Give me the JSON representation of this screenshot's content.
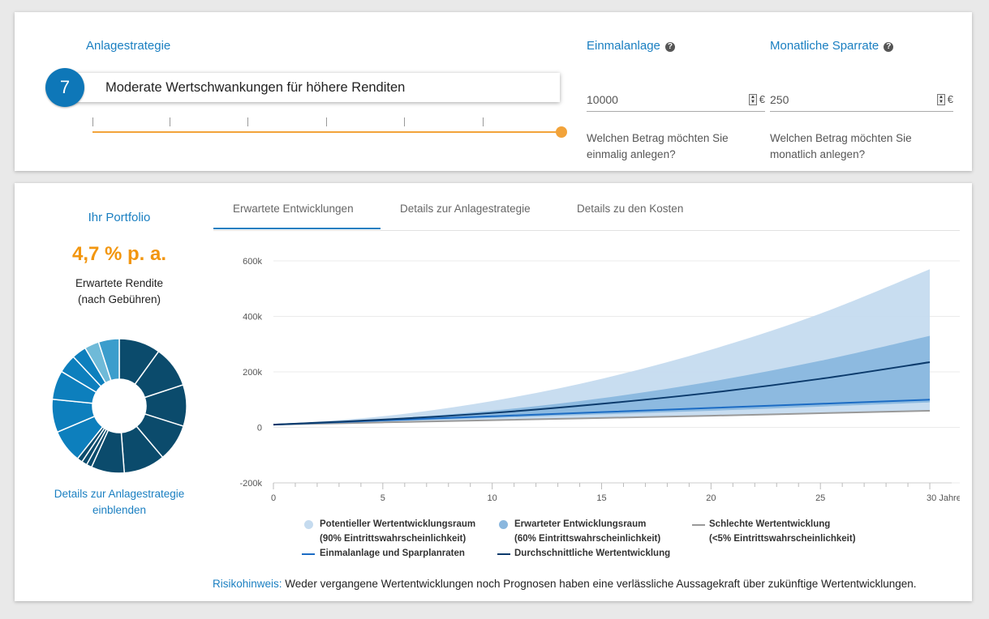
{
  "strategy": {
    "heading": "Anlagestrategie",
    "level": "7",
    "description": "Moderate Wertschwankungen für höhere Renditen",
    "slider_value": 7,
    "slider_max": 7,
    "accent_color": "#f2a33a"
  },
  "one_time": {
    "heading": "Einmalanlage",
    "value": "10000",
    "unit": "€",
    "help": "Welchen Betrag möchten Sie einmalig anlegen?"
  },
  "monthly": {
    "heading": "Monatliche Sparrate",
    "value": "250",
    "unit": "€",
    "help": "Welchen Betrag möchten Sie monatlich anlegen?"
  },
  "portfolio": {
    "title": "Ihr Portfolio",
    "return_value": "4,7 % p. a.",
    "return_label_1": "Erwartete Rendite",
    "return_label_2": "(nach Gebühren)",
    "details_link_1": "Details zur Anlagestrategie",
    "details_link_2": "einblenden",
    "donut_slices": [
      {
        "value": 10,
        "color": "#0b4b6c"
      },
      {
        "value": 10,
        "color": "#0b4b6c"
      },
      {
        "value": 10,
        "color": "#0b4b6c"
      },
      {
        "value": 9,
        "color": "#0b4b6c"
      },
      {
        "value": 10,
        "color": "#0b4b6c"
      },
      {
        "value": 8,
        "color": "#0b4b6c"
      },
      {
        "value": 1.3,
        "color": "#0b4b6c"
      },
      {
        "value": 1.3,
        "color": "#0b4b6c"
      },
      {
        "value": 1.3,
        "color": "#0b4b6c"
      },
      {
        "value": 8,
        "color": "#0d7fbd"
      },
      {
        "value": 8,
        "color": "#0d7fbd"
      },
      {
        "value": 7,
        "color": "#0d7fbd"
      },
      {
        "value": 4.5,
        "color": "#0d7fbd"
      },
      {
        "value": 3.5,
        "color": "#0d7fbd"
      },
      {
        "value": 3.5,
        "color": "#6fbad8"
      },
      {
        "value": 5,
        "color": "#3b9dcc"
      }
    ]
  },
  "tabs": [
    {
      "label": "Erwartete Entwicklungen",
      "active": true
    },
    {
      "label": "Details zur Anlagestrategie",
      "active": false
    },
    {
      "label": "Details zu den Kosten",
      "active": false
    }
  ],
  "chart_data": {
    "type": "area",
    "x_unit_label": "Jahre",
    "x_ticks": [
      0,
      5,
      10,
      15,
      20,
      25,
      30
    ],
    "x_tick_labels": [
      "0",
      "5",
      "10",
      "15",
      "20",
      "25",
      "30 Jahre"
    ],
    "xlim": [
      0,
      31
    ],
    "y_ticks": [
      -200000,
      0,
      200000,
      400000,
      600000
    ],
    "y_tick_labels": [
      "-200k",
      "0",
      "200k",
      "400k",
      "600k"
    ],
    "ylim": [
      -200000,
      600000
    ],
    "grid": true,
    "x": [
      0,
      5,
      10,
      15,
      20,
      25,
      30
    ],
    "bands": [
      {
        "name": "Potentieller Wertentwicklungsraum",
        "color": "#c5dbef",
        "upper": [
          10000,
          40000,
          95000,
          175000,
          280000,
          410000,
          570000
        ],
        "lower": [
          10000,
          20000,
          27000,
          35000,
          43000,
          51000,
          60000
        ]
      },
      {
        "name": "Erwarteter Entwicklungsraum",
        "color": "#8ab7de",
        "upper": [
          10000,
          30000,
          60000,
          105000,
          165000,
          240000,
          330000
        ],
        "lower": [
          10000,
          22000,
          34000,
          47000,
          60000,
          75000,
          90000
        ]
      }
    ],
    "series": [
      {
        "name": "Schlechte Wertentwicklung",
        "color": "#999999",
        "values": [
          10000,
          18000,
          26000,
          34000,
          42000,
          51000,
          60000
        ]
      },
      {
        "name": "Einmalanlage und Sparplanraten",
        "color": "#1c6cc4",
        "values": [
          10000,
          25000,
          40000,
          55000,
          70000,
          85000,
          100000
        ]
      },
      {
        "name": "Durchschnittliche Wertentwicklung",
        "color": "#0b3a6b",
        "values": [
          10000,
          28000,
          52000,
          85000,
          125000,
          175000,
          235000
        ]
      }
    ]
  },
  "legend": {
    "potential_1": "Potentieller Wertentwicklungsraum",
    "potential_2": "(90% Eintrittswahrscheinlichkeit)",
    "expected_1": "Erwarteter Entwicklungsraum",
    "expected_2": "(60% Eintrittswahrscheinlichkeit)",
    "bad_1": "Schlechte Wertentwicklung",
    "bad_2": "(<5% Eintrittswahrscheinlichkeit)",
    "payments": "Einmalanlage und Sparplanraten",
    "average": "Durchschnittliche Wertentwicklung"
  },
  "risk": {
    "label": "Risikohinweis:",
    "text": "Weder vergangene Wertentwicklungen noch Prognosen haben eine verlässliche Aussagekraft über zukünftige Wertentwicklungen."
  }
}
